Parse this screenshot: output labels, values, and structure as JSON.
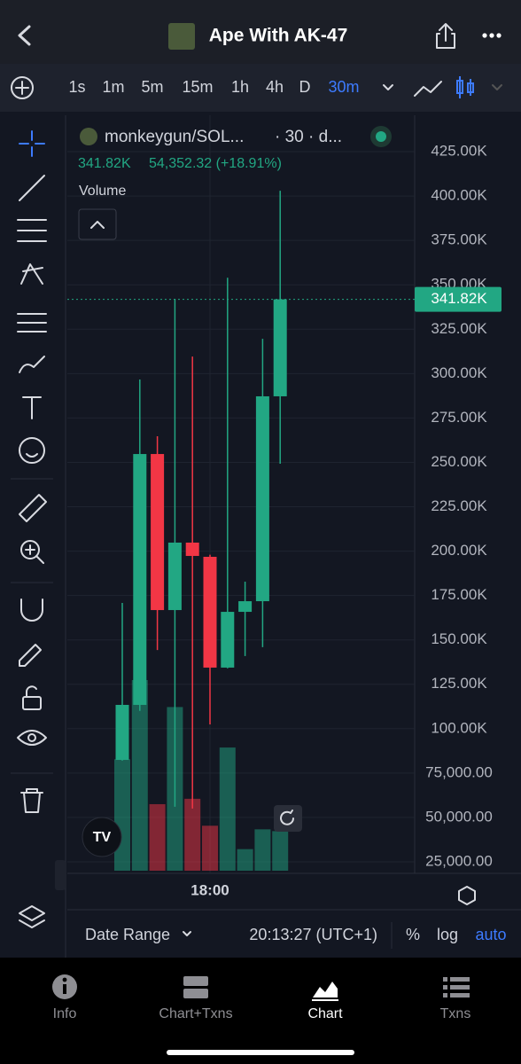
{
  "header": {
    "title": "Ape With AK-47"
  },
  "timeframes": {
    "items": [
      "1s",
      "1m",
      "5m",
      "15m",
      "1h",
      "4h",
      "D",
      "30m"
    ],
    "active": 7
  },
  "chart_data": {
    "type": "candlestick",
    "symbol": "monkeygun/SOL...",
    "interval": "· 30 · d...",
    "legend_price": "341.82K",
    "legend_change": "54,352.32 (+18.91%)",
    "volume_label": "Volume",
    "categories": [
      null,
      null,
      null,
      null,
      null,
      "18:00",
      null,
      null,
      null,
      null
    ],
    "open": [
      82400,
      113400,
      254700,
      166800,
      204800,
      196800,
      134400,
      165800,
      171800,
      287200
    ],
    "high": [
      170800,
      296700,
      264700,
      342100,
      309600,
      198000,
      354000,
      182800,
      319600,
      403000
    ],
    "low": [
      82000,
      110000,
      144300,
      56000,
      55000,
      102400,
      134000,
      140900,
      145900,
      249200
    ],
    "close": [
      113400,
      254700,
      166800,
      204800,
      197300,
      134400,
      165800,
      171800,
      287200,
      341820
    ],
    "volume": [
      124,
      212,
      74,
      182,
      80,
      50,
      137,
      24,
      46,
      44
    ],
    "up_color": "#22a783",
    "down_color": "#f23645",
    "last_price": {
      "value": 341820,
      "label": "341.82K"
    },
    "ylim": [
      18500,
      445500
    ],
    "yticks": [
      {
        "value": 425000,
        "label": "425.00K"
      },
      {
        "value": 400000,
        "label": "400.00K"
      },
      {
        "value": 375000,
        "label": "375.00K"
      },
      {
        "value": 350000,
        "label": "350.00K"
      },
      {
        "value": 325000,
        "label": "325.00K"
      },
      {
        "value": 300000,
        "label": "300.00K"
      },
      {
        "value": 275000,
        "label": "275.00K"
      },
      {
        "value": 250000,
        "label": "250.00K"
      },
      {
        "value": 225000,
        "label": "225.00K"
      },
      {
        "value": 200000,
        "label": "200.00K"
      },
      {
        "value": 175000,
        "label": "175.00K"
      },
      {
        "value": 150000,
        "label": "150.00K"
      },
      {
        "value": 125000,
        "label": "125.00K"
      },
      {
        "value": 100000,
        "label": "100.00K"
      },
      {
        "value": 75000,
        "label": "75,000.00"
      },
      {
        "value": 50000,
        "label": "50,000.00"
      },
      {
        "value": 25000,
        "label": "25,000.00"
      }
    ],
    "grid": true
  },
  "footer": {
    "date_range": "Date Range",
    "time": "20:13:27 (UTC+1)",
    "percent": "%",
    "log": "log",
    "auto": "auto"
  },
  "tabs": [
    {
      "label": "Info"
    },
    {
      "label": "Chart+Txns"
    },
    {
      "label": "Chart",
      "active": true
    },
    {
      "label": "Txns"
    }
  ]
}
